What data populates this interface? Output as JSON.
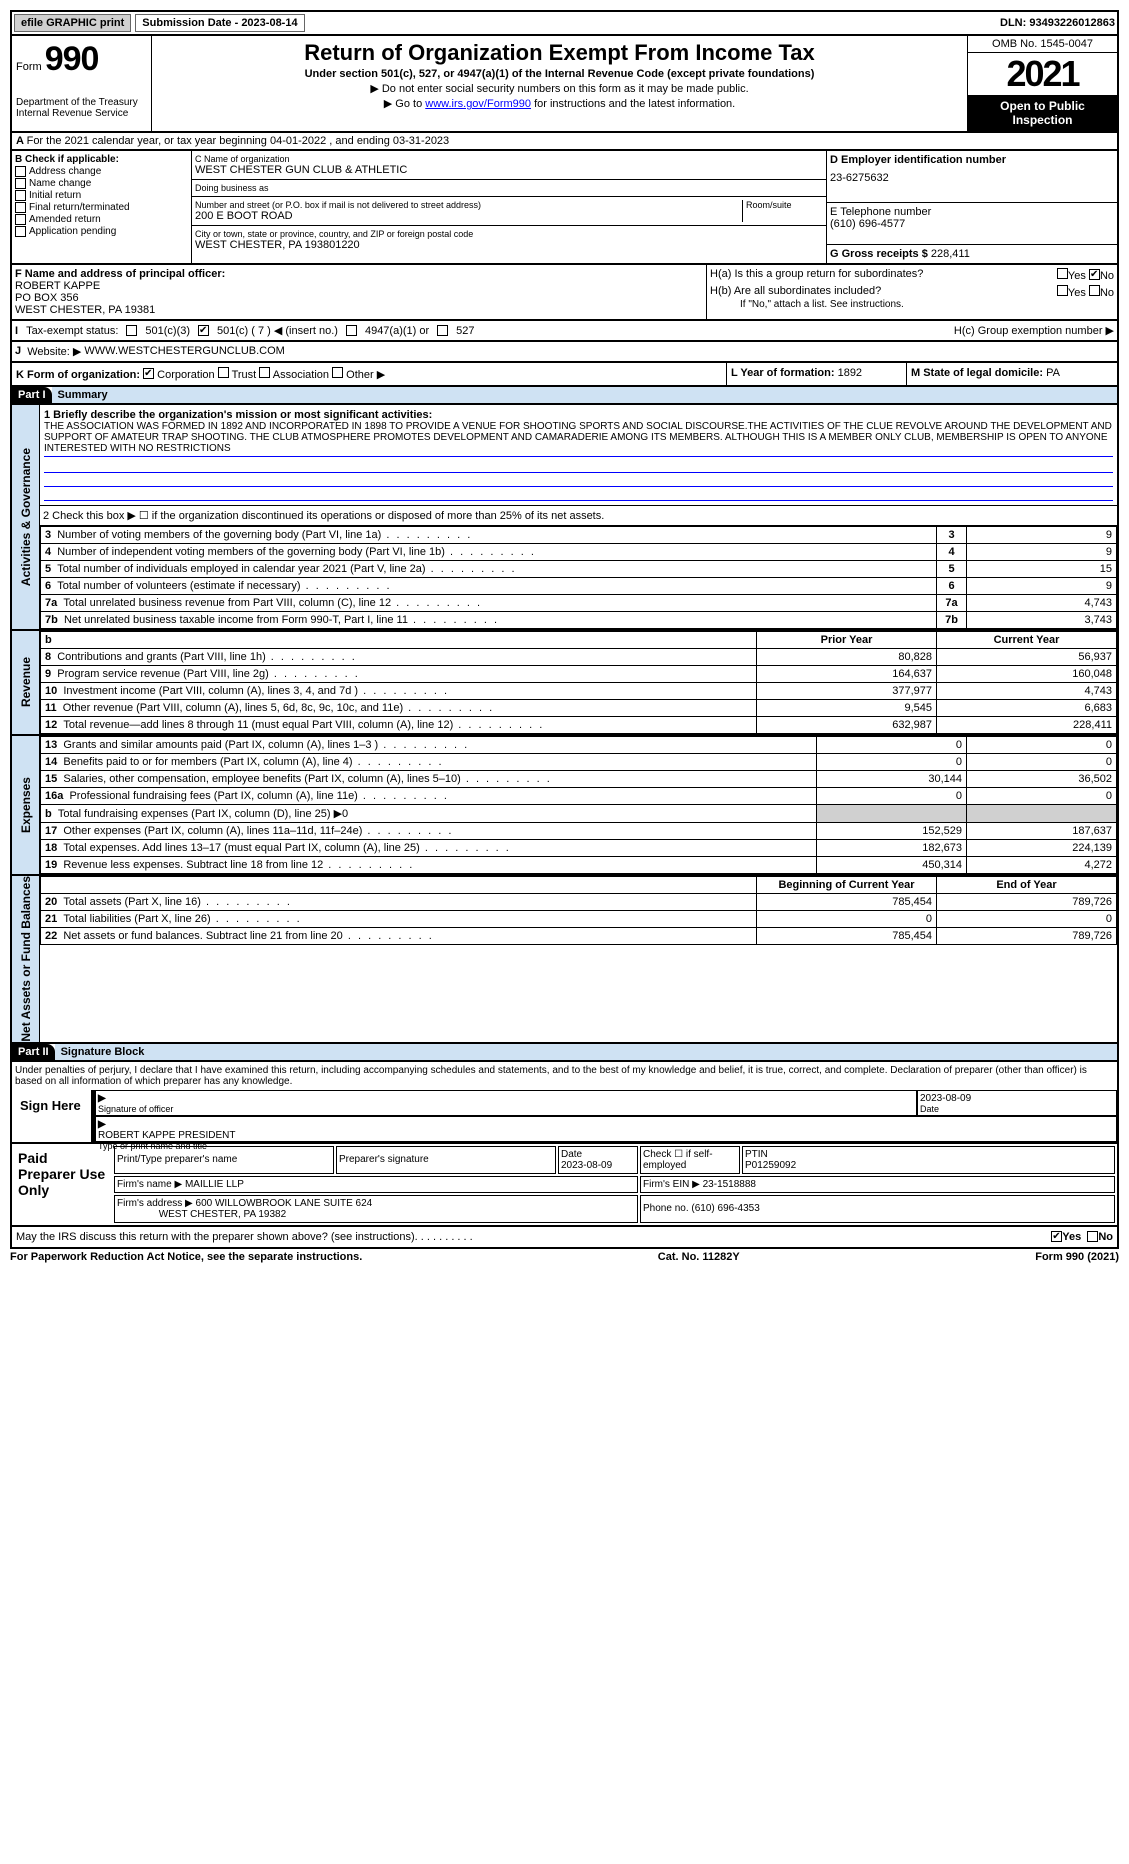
{
  "topbar": {
    "efile": "efile GRAPHIC print",
    "submission_label": "Submission Date - 2023-08-14",
    "dln": "DLN: 93493226012863"
  },
  "header": {
    "form_word": "Form",
    "form_num": "990",
    "title": "Return of Organization Exempt From Income Tax",
    "sub1": "Under section 501(c), 527, or 4947(a)(1) of the Internal Revenue Code (except private foundations)",
    "sub2a": "▶ Do not enter social security numbers on this form as it may be made public.",
    "sub2b_pre": "▶ Go to ",
    "sub2b_link": "www.irs.gov/Form990",
    "sub2b_post": " for instructions and the latest information.",
    "dept": "Department of the Treasury",
    "irs": "Internal Revenue Service",
    "omb": "OMB No. 1545-0047",
    "year": "2021",
    "open_pub": "Open to Public Inspection"
  },
  "lineA": "For the 2021 calendar year, or tax year beginning 04-01-2022    , and ending 03-31-2023",
  "B": {
    "title": "B Check if applicable:",
    "opts": [
      "Address change",
      "Name change",
      "Initial return",
      "Final return/terminated",
      "Amended return",
      "Application pending"
    ]
  },
  "C": {
    "name_lbl": "C Name of organization",
    "name": "WEST CHESTER GUN CLUB & ATHLETIC",
    "dba_lbl": "Doing business as",
    "dba": "",
    "street_lbl": "Number and street (or P.O. box if mail is not delivered to street address)",
    "street": "200 E BOOT ROAD",
    "room_lbl": "Room/suite",
    "city_lbl": "City or town, state or province, country, and ZIP or foreign postal code",
    "city": "WEST CHESTER, PA  193801220"
  },
  "D": {
    "lbl": "D Employer identification number",
    "val": "23-6275632"
  },
  "E": {
    "lbl": "E Telephone number",
    "val": "(610) 696-4577"
  },
  "G": {
    "lbl": "G Gross receipts $",
    "val": "228,411"
  },
  "F": {
    "lbl": "F  Name and address of principal officer:",
    "name": "ROBERT KAPPE",
    "addr1": "PO BOX 356",
    "addr2": "WEST CHESTER, PA  19381"
  },
  "H": {
    "a": "H(a)  Is this a group return for subordinates?",
    "b": "H(b)  Are all subordinates included?",
    "b_note": "If \"No,\" attach a list. See instructions.",
    "c": "H(c)  Group exemption number ▶",
    "yes": "Yes",
    "no": "No"
  },
  "I": {
    "lbl": "Tax-exempt status:",
    "o1": "501(c)(3)",
    "o2": "501(c) ( 7 ) ◀ (insert no.)",
    "o3": "4947(a)(1) or",
    "o4": "527"
  },
  "J": {
    "lbl": "Website: ▶",
    "val": "WWW.WESTCHESTERGUNCLUB.COM"
  },
  "K": {
    "lbl": "K Form of organization:",
    "corp": "Corporation",
    "trust": "Trust",
    "assoc": "Association",
    "other": "Other ▶"
  },
  "L": {
    "lbl": "L Year of formation:",
    "val": "1892"
  },
  "M": {
    "lbl": "M State of legal domicile:",
    "val": "PA"
  },
  "part1": {
    "hdr": "Part I",
    "title": "Summary"
  },
  "summary": {
    "q1": "1  Briefly describe the organization's mission or most significant activities:",
    "mission": "THE ASSOCIATION WAS FORMED IN 1892 AND INCORPORATED IN 1898 TO PROVIDE A VENUE FOR SHOOTING SPORTS AND SOCIAL DISCOURSE.THE ACTIVITIES OF THE CLUE REVOLVE AROUND THE DEVELOPMENT AND SUPPORT OF AMATEUR TRAP SHOOTING. THE CLUB ATMOSPHERE PROMOTES DEVELOPMENT AND CAMARADERIE AMONG ITS MEMBERS. ALTHOUGH THIS IS A MEMBER ONLY CLUB, MEMBERSHIP IS OPEN TO ANYONE INTERESTED WITH NO RESTRICTIONS",
    "q2": "2   Check this box ▶ ☐  if the organization discontinued its operations or disposed of more than 25% of its net assets.",
    "rows_gov": [
      {
        "n": "3",
        "d": "Number of voting members of the governing body (Part VI, line 1a)",
        "v": "9"
      },
      {
        "n": "4",
        "d": "Number of independent voting members of the governing body (Part VI, line 1b)",
        "v": "9"
      },
      {
        "n": "5",
        "d": "Total number of individuals employed in calendar year 2021 (Part V, line 2a)",
        "v": "15"
      },
      {
        "n": "6",
        "d": "Total number of volunteers (estimate if necessary)",
        "v": "9"
      },
      {
        "n": "7a",
        "d": "Total unrelated business revenue from Part VIII, column (C), line 12",
        "v": "4,743"
      },
      {
        "n": "7b",
        "d": "Net unrelated business taxable income from Form 990-T, Part I, line 11",
        "v": "3,743"
      }
    ],
    "pycy_hdr": {
      "b": "b",
      "py": "Prior Year",
      "cy": "Current Year"
    },
    "rows_rev": [
      {
        "n": "8",
        "d": "Contributions and grants (Part VIII, line 1h)",
        "py": "80,828",
        "cy": "56,937"
      },
      {
        "n": "9",
        "d": "Program service revenue (Part VIII, line 2g)",
        "py": "164,637",
        "cy": "160,048"
      },
      {
        "n": "10",
        "d": "Investment income (Part VIII, column (A), lines 3, 4, and 7d )",
        "py": "377,977",
        "cy": "4,743"
      },
      {
        "n": "11",
        "d": "Other revenue (Part VIII, column (A), lines 5, 6d, 8c, 9c, 10c, and 11e)",
        "py": "9,545",
        "cy": "6,683"
      },
      {
        "n": "12",
        "d": "Total revenue—add lines 8 through 11 (must equal Part VIII, column (A), line 12)",
        "py": "632,987",
        "cy": "228,411"
      }
    ],
    "rows_exp": [
      {
        "n": "13",
        "d": "Grants and similar amounts paid (Part IX, column (A), lines 1–3 )",
        "py": "0",
        "cy": "0"
      },
      {
        "n": "14",
        "d": "Benefits paid to or for members (Part IX, column (A), line 4)",
        "py": "0",
        "cy": "0"
      },
      {
        "n": "15",
        "d": "Salaries, other compensation, employee benefits (Part IX, column (A), lines 5–10)",
        "py": "30,144",
        "cy": "36,502"
      },
      {
        "n": "16a",
        "d": "Professional fundraising fees (Part IX, column (A), line 11e)",
        "py": "0",
        "cy": "0"
      },
      {
        "n": "b",
        "d": "Total fundraising expenses (Part IX, column (D), line 25) ▶0",
        "py": "",
        "cy": "",
        "shade": true
      },
      {
        "n": "17",
        "d": "Other expenses (Part IX, column (A), lines 11a–11d, 11f–24e)",
        "py": "152,529",
        "cy": "187,637"
      },
      {
        "n": "18",
        "d": "Total expenses. Add lines 13–17 (must equal Part IX, column (A), line 25)",
        "py": "182,673",
        "cy": "224,139"
      },
      {
        "n": "19",
        "d": "Revenue less expenses. Subtract line 18 from line 12",
        "py": "450,314",
        "cy": "4,272"
      }
    ],
    "na_hdr": {
      "boy": "Beginning of Current Year",
      "eoy": "End of Year"
    },
    "rows_na": [
      {
        "n": "20",
        "d": "Total assets (Part X, line 16)",
        "py": "785,454",
        "cy": "789,726"
      },
      {
        "n": "21",
        "d": "Total liabilities (Part X, line 26)",
        "py": "0",
        "cy": "0"
      },
      {
        "n": "22",
        "d": "Net assets or fund balances. Subtract line 21 from line 20",
        "py": "785,454",
        "cy": "789,726"
      }
    ],
    "side_gov": "Activities & Governance",
    "side_rev": "Revenue",
    "side_exp": "Expenses",
    "side_na": "Net Assets or Fund Balances"
  },
  "part2": {
    "hdr": "Part II",
    "title": "Signature Block"
  },
  "sig": {
    "decl": "Under penalties of perjury, I declare that I have examined this return, including accompanying schedules and statements, and to the best of my knowledge and belief, it is true, correct, and complete. Declaration of preparer (other than officer) is based on all information of which preparer has any knowledge.",
    "sign_here": "Sign Here",
    "sig_officer": "Signature of officer",
    "date": "2023-08-09",
    "date_lbl": "Date",
    "name": "ROBERT KAPPE  PRESIDENT",
    "name_lbl": "Type or print name and title"
  },
  "prep": {
    "title": "Paid Preparer Use Only",
    "h1": "Print/Type preparer's name",
    "h2": "Preparer's signature",
    "h3": "Date",
    "h3v": "2023-08-09",
    "h4": "Check ☐ if self-employed",
    "h5": "PTIN",
    "h5v": "P01259092",
    "firm_lbl": "Firm's name   ▶",
    "firm": "MAILLIE LLP",
    "ein_lbl": "Firm's EIN ▶",
    "ein": "23-1518888",
    "addr_lbl": "Firm's address ▶",
    "addr1": "600 WILLOWBROOK LANE SUITE 624",
    "addr2": "WEST CHESTER, PA  19382",
    "phone_lbl": "Phone no.",
    "phone": "(610) 696-4353"
  },
  "may_irs": {
    "q": "May the IRS discuss this return with the preparer shown above? (see instructions)",
    "yes": "Yes",
    "no": "No"
  },
  "footer": {
    "paperwork": "For Paperwork Reduction Act Notice, see the separate instructions.",
    "cat": "Cat. No. 11282Y",
    "form": "Form 990 (2021)"
  }
}
